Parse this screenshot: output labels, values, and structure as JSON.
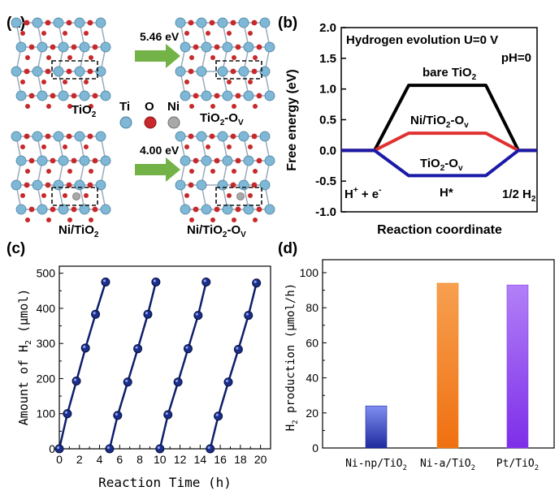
{
  "panel_a": {
    "label": "(a)",
    "top_left": "TiO",
    "top_left_sub": "2",
    "top_right": "TiO",
    "top_right_sub": "2",
    "top_right_suffix": "-O",
    "top_right_suffix_sub": "V",
    "bottom_left": "Ni/TiO",
    "bottom_left_sub": "2",
    "bottom_right": "Ni/TiO",
    "bottom_right_sub": "2",
    "bottom_right_suffix": "-O",
    "bottom_right_suffix_sub": "V",
    "energy_top": "5.46 eV",
    "energy_bottom": "4.00 eV",
    "legend": [
      {
        "symbol": "Ti",
        "color": "#7fb7d6"
      },
      {
        "symbol": "O",
        "color": "#c8282a"
      },
      {
        "symbol": "Ni",
        "color": "#a8a8a8"
      }
    ]
  },
  "chart_data": [
    {
      "panel": "(b)",
      "type": "line",
      "title": "Hydrogen evolution U=0 V",
      "subtitle": "pH=0",
      "xlabel": "Reaction coordinate",
      "ylabel": "Free energy (eV)",
      "ylim": [
        -1.0,
        2.0
      ],
      "yticks": [
        "2.0",
        "1.5",
        "1.0",
        "0.5",
        "0.0",
        "-0.5",
        "-1.0"
      ],
      "state_labels": {
        "start": "H",
        "start_sup": "+",
        "start_plus": " + e",
        "start_sup2": "-",
        "middle": "H*",
        "end": "1/2 H",
        "end_sub": "2"
      },
      "series": [
        {
          "name": "bare TiO",
          "name_sub": "2",
          "color": "#000000",
          "values": [
            0.0,
            1.06,
            0.0
          ]
        },
        {
          "name": "Ni/TiO",
          "name_sub": "2",
          "name_suffix": "-O",
          "name_suffix_sub": "v",
          "color": "#e03030",
          "values": [
            0.0,
            0.28,
            0.0
          ]
        },
        {
          "name": "TiO",
          "name_sub": "2",
          "name_suffix": "-O",
          "name_suffix_sub": "v",
          "color": "#1a1aa8",
          "values": [
            0.0,
            -0.41,
            0.0
          ]
        }
      ]
    },
    {
      "panel": "(c)",
      "type": "line",
      "xlabel": "Reaction Time (h)",
      "ylabel": "Amount of H",
      "ylabel_sub": "2",
      "ylabel_unit": " (μmol)",
      "xlim": [
        0,
        21
      ],
      "ylim": [
        0,
        520
      ],
      "xticks": [
        "0",
        "2",
        "4",
        "6",
        "8",
        "10",
        "12",
        "14",
        "16",
        "18",
        "20"
      ],
      "yticks": [
        "0",
        "100",
        "200",
        "300",
        "400",
        "500"
      ],
      "color": "#0d1f6b",
      "cycles": [
        {
          "x": [
            0,
            0.8,
            1.7,
            2.6,
            3.6,
            4.6
          ],
          "y": [
            0,
            100,
            193,
            287,
            383,
            475
          ]
        },
        {
          "x": [
            5,
            5.8,
            6.8,
            7.8,
            8.8,
            9.6
          ],
          "y": [
            0,
            95,
            190,
            285,
            383,
            475
          ]
        },
        {
          "x": [
            10,
            10.8,
            11.8,
            12.8,
            13.8,
            14.6
          ],
          "y": [
            0,
            97,
            190,
            285,
            380,
            475
          ]
        },
        {
          "x": [
            15,
            15.8,
            16.8,
            17.8,
            18.8,
            19.6
          ],
          "y": [
            0,
            93,
            190,
            283,
            380,
            472
          ]
        }
      ]
    },
    {
      "panel": "(d)",
      "type": "bar",
      "ylabel": "H",
      "ylabel_sub": "2",
      "ylabel_rest": " production (μmol/h)",
      "ylim": [
        0,
        100
      ],
      "yticks": [
        "0",
        "20",
        "40",
        "60",
        "80",
        "100"
      ],
      "categories": [
        {
          "label": "Ni-np/TiO",
          "sub": "2",
          "color": "#1f2a9e"
        },
        {
          "label": "Ni-a/TiO",
          "sub": "2",
          "color": "#f0841d"
        },
        {
          "label": "Pt/TiO",
          "sub": "2",
          "color": "#8c3ef0"
        }
      ],
      "values": [
        24,
        94,
        93
      ]
    }
  ]
}
